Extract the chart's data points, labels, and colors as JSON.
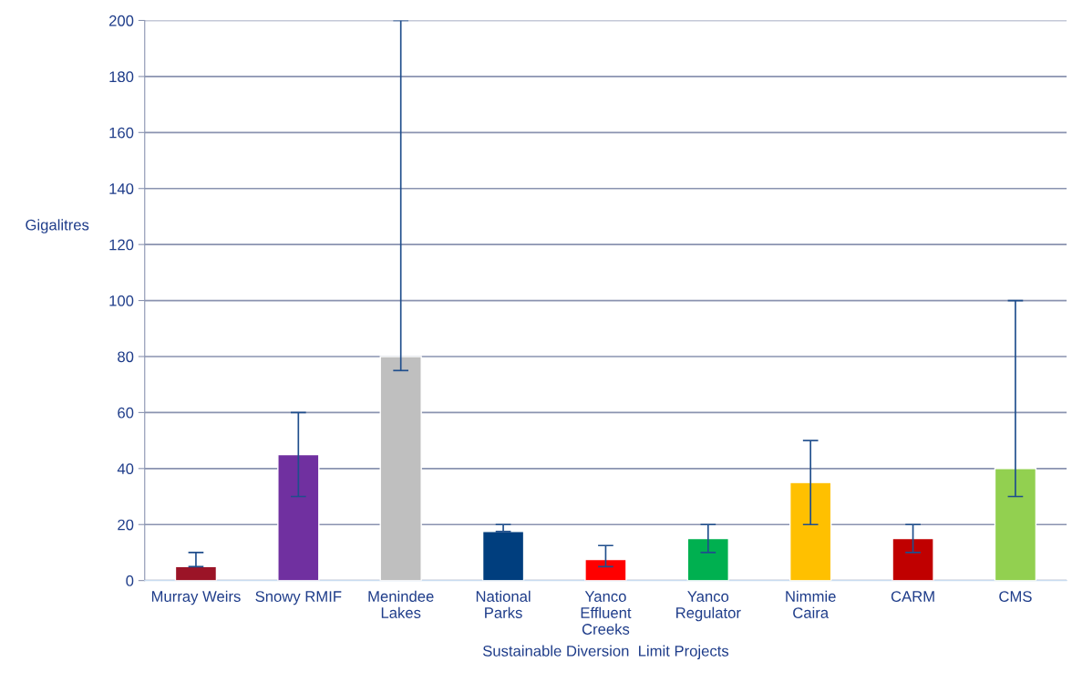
{
  "chart_data": {
    "type": "bar",
    "xlabel": "Sustainable Diversion  Limit Projects",
    "ylabel": "Gigalitres",
    "categories": [
      "Murray Weirs",
      "Snowy RMIF",
      "Menindee\nLakes",
      "National\nParks",
      "Yanco\nEffluent\nCreeks",
      "Yanco\nRegulator",
      "Nimmie\nCaira",
      "CARM",
      "CMS"
    ],
    "values": [
      5,
      45,
      80,
      17.5,
      7.5,
      15,
      35,
      15,
      40
    ],
    "colors": [
      "#9b1427",
      "#7030a0",
      "#bfbfbf",
      "#003e7e",
      "#ff0000",
      "#00b050",
      "#ffc000",
      "#c00000",
      "#92d050"
    ],
    "errors": [
      [
        5,
        10
      ],
      [
        30,
        60
      ],
      [
        75,
        200
      ],
      [
        17.5,
        20
      ],
      [
        5,
        12.5
      ],
      [
        10,
        20
      ],
      [
        20,
        50
      ],
      [
        10,
        20
      ],
      [
        30,
        100
      ]
    ],
    "ylim": [
      0,
      200
    ],
    "yticks": [
      0,
      20,
      40,
      60,
      80,
      100,
      120,
      140,
      160,
      180,
      200
    ],
    "grid": "y",
    "legend": false
  }
}
